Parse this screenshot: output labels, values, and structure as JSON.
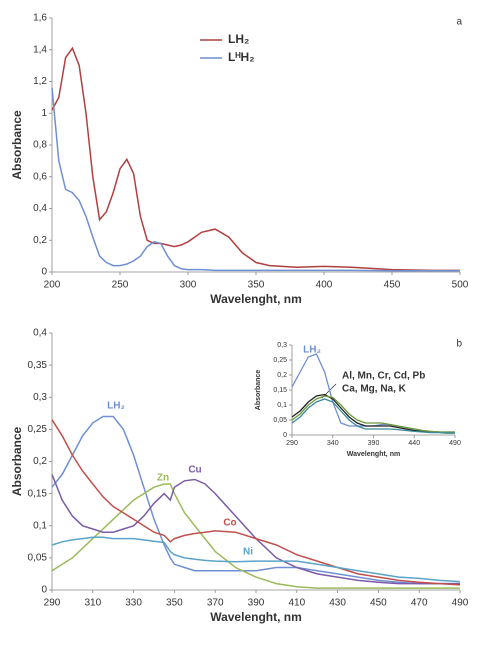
{
  "chart_data": [
    {
      "type": "line",
      "annotation": "a",
      "xlabel": "Wavelenght, nm",
      "ylabel": "Absorbance",
      "x": [
        200,
        205,
        210,
        215,
        220,
        225,
        230,
        235,
        240,
        245,
        250,
        255,
        260,
        265,
        270,
        275,
        280,
        285,
        290,
        295,
        300,
        310,
        320,
        330,
        340,
        350,
        360,
        380,
        400,
        420,
        450,
        480,
        500
      ],
      "series": [
        {
          "name": "LH₂",
          "color": "#b0403f",
          "values": [
            1.02,
            1.1,
            1.35,
            1.41,
            1.3,
            1.0,
            0.6,
            0.33,
            0.38,
            0.5,
            0.65,
            0.71,
            0.62,
            0.35,
            0.2,
            0.18,
            0.18,
            0.17,
            0.16,
            0.17,
            0.19,
            0.25,
            0.27,
            0.22,
            0.12,
            0.06,
            0.04,
            0.03,
            0.035,
            0.03,
            0.015,
            0.01,
            0.01
          ]
        },
        {
          "name": "LᴴH₂",
          "color": "#6f8fd4",
          "values": [
            1.16,
            0.7,
            0.52,
            0.5,
            0.45,
            0.35,
            0.22,
            0.1,
            0.06,
            0.04,
            0.04,
            0.05,
            0.07,
            0.1,
            0.16,
            0.19,
            0.18,
            0.1,
            0.04,
            0.02,
            0.015,
            0.015,
            0.01,
            0.01,
            0.01,
            0.01,
            0.01,
            0.01,
            0.01,
            0.01,
            0.008,
            0.008,
            0.008
          ]
        }
      ],
      "xlim": [
        200,
        500
      ],
      "xticks": [
        200,
        250,
        300,
        350,
        400,
        450,
        500
      ],
      "ylim": [
        0,
        1.6
      ],
      "yticks": [
        0,
        {
          "value": 0.2,
          "label": "0,2"
        },
        {
          "value": 0.4,
          "label": "0,4"
        },
        {
          "value": 0.6,
          "label": "0,6"
        },
        {
          "value": 0.8,
          "label": "0,8"
        },
        1,
        {
          "value": 1.2,
          "label": "1,2"
        },
        {
          "value": 1.4,
          "label": "1,4"
        },
        {
          "value": 1.6,
          "label": "1,6"
        }
      ]
    },
    {
      "type": "line",
      "annotation": "b",
      "xlabel": "Wavelenght, nm",
      "ylabel": "Absorbance",
      "x": [
        290,
        295,
        300,
        305,
        310,
        315,
        320,
        325,
        330,
        335,
        340,
        345,
        348,
        350,
        355,
        360,
        365,
        370,
        380,
        390,
        400,
        410,
        420,
        430,
        440,
        450,
        460,
        470,
        480,
        490
      ],
      "series": [
        {
          "name": "LH₂",
          "color": "#6f8fd4",
          "values": [
            0.16,
            0.18,
            0.21,
            0.24,
            0.26,
            0.27,
            0.27,
            0.25,
            0.21,
            0.16,
            0.11,
            0.07,
            0.05,
            0.04,
            0.035,
            0.03,
            0.03,
            0.03,
            0.03,
            0.03,
            0.035,
            0.035,
            0.03,
            0.025,
            0.02,
            0.015,
            0.012,
            0.01,
            0.01,
            0.01
          ]
        },
        {
          "name": "Zn",
          "color": "#9bbb59",
          "values": [
            0.03,
            0.04,
            0.05,
            0.065,
            0.08,
            0.095,
            0.11,
            0.125,
            0.14,
            0.15,
            0.16,
            0.165,
            0.165,
            0.15,
            0.12,
            0.1,
            0.08,
            0.06,
            0.035,
            0.02,
            0.01,
            0.005,
            0.003,
            0.003,
            0.003,
            0.003,
            0.003,
            0.003,
            0.003,
            0.003
          ]
        },
        {
          "name": "Cu",
          "color": "#7a5ca8",
          "values": [
            0.18,
            0.14,
            0.115,
            0.1,
            0.095,
            0.09,
            0.09,
            0.095,
            0.1,
            0.115,
            0.135,
            0.15,
            0.14,
            0.16,
            0.17,
            0.172,
            0.165,
            0.15,
            0.115,
            0.08,
            0.05,
            0.035,
            0.025,
            0.02,
            0.015,
            0.012,
            0.01,
            0.01,
            0.01,
            0.01
          ]
        },
        {
          "name": "Co",
          "color": "#c0504d",
          "values": [
            0.265,
            0.24,
            0.21,
            0.185,
            0.165,
            0.145,
            0.13,
            0.12,
            0.11,
            0.1,
            0.09,
            0.085,
            0.075,
            0.08,
            0.085,
            0.088,
            0.09,
            0.092,
            0.09,
            0.08,
            0.07,
            0.055,
            0.045,
            0.035,
            0.025,
            0.02,
            0.015,
            0.012,
            0.01,
            0.008
          ]
        },
        {
          "name": "Ni",
          "color": "#5ba3c9",
          "values": [
            0.07,
            0.075,
            0.078,
            0.08,
            0.082,
            0.082,
            0.08,
            0.08,
            0.08,
            0.078,
            0.076,
            0.074,
            0.06,
            0.055,
            0.05,
            0.048,
            0.046,
            0.045,
            0.044,
            0.045,
            0.045,
            0.045,
            0.04,
            0.035,
            0.03,
            0.025,
            0.02,
            0.018,
            0.015,
            0.013
          ]
        }
      ],
      "xlim": [
        290,
        490
      ],
      "xticks": [
        290,
        310,
        330,
        350,
        370,
        390,
        410,
        430,
        450,
        470,
        490
      ],
      "ylim": [
        0,
        0.4
      ],
      "yticks": [
        0,
        {
          "value": 0.05,
          "label": "0,05"
        },
        {
          "value": 0.1,
          "label": "0,1"
        },
        {
          "value": 0.15,
          "label": "0,15"
        },
        {
          "value": 0.2,
          "label": "0,2"
        },
        {
          "value": 0.25,
          "label": "0,25"
        },
        {
          "value": 0.3,
          "label": "0,3"
        },
        {
          "value": 0.35,
          "label": "0,35"
        },
        {
          "value": 0.4,
          "label": "0,4"
        }
      ]
    },
    {
      "type": "line",
      "xlabel": "Wavelenght, nm",
      "ylabel": "Absorbance",
      "annotations": [
        "Al, Mn, Cr, Cd, Pb",
        "Ca, Mg, Na, K"
      ],
      "x": [
        290,
        300,
        310,
        320,
        330,
        340,
        350,
        360,
        370,
        380,
        390,
        400,
        410,
        420,
        430,
        440,
        450,
        460,
        470,
        480,
        490
      ],
      "series": [
        {
          "name": "LH₂",
          "color": "#6f8fd4",
          "values": [
            0.16,
            0.21,
            0.26,
            0.27,
            0.21,
            0.11,
            0.04,
            0.03,
            0.03,
            0.03,
            0.03,
            0.035,
            0.035,
            0.03,
            0.025,
            0.02,
            0.015,
            0.012,
            0.01,
            0.01,
            0.01
          ]
        },
        {
          "color": "#222222",
          "values": [
            0.06,
            0.08,
            0.11,
            0.13,
            0.135,
            0.12,
            0.09,
            0.06,
            0.04,
            0.03,
            0.03,
            0.03,
            0.03,
            0.025,
            0.02,
            0.015,
            0.012,
            0.01,
            0.01,
            0.008,
            0.008
          ]
        },
        {
          "color": "#6a9a3a",
          "values": [
            0.05,
            0.07,
            0.1,
            0.12,
            0.13,
            0.125,
            0.1,
            0.07,
            0.05,
            0.04,
            0.04,
            0.04,
            0.035,
            0.03,
            0.025,
            0.02,
            0.015,
            0.012,
            0.01,
            0.01,
            0.01
          ]
        },
        {
          "color": "#3a8a9a",
          "values": [
            0.04,
            0.06,
            0.09,
            0.11,
            0.12,
            0.11,
            0.08,
            0.05,
            0.03,
            0.02,
            0.02,
            0.02,
            0.02,
            0.018,
            0.015,
            0.012,
            0.01,
            0.008,
            0.008,
            0.006,
            0.006
          ]
        }
      ],
      "xlim": [
        290,
        490
      ],
      "xticks": [
        290,
        340,
        390,
        440,
        490
      ],
      "ylim": [
        0,
        0.3
      ],
      "yticks": [
        0,
        {
          "value": 0.05,
          "label": "0,05"
        },
        {
          "value": 0.1,
          "label": "0,1"
        },
        {
          "value": 0.15,
          "label": "0,15"
        },
        {
          "value": 0.2,
          "label": "0,2"
        },
        {
          "value": 0.25,
          "label": "0,25"
        },
        {
          "value": 0.3,
          "label": "0,3"
        }
      ]
    }
  ]
}
